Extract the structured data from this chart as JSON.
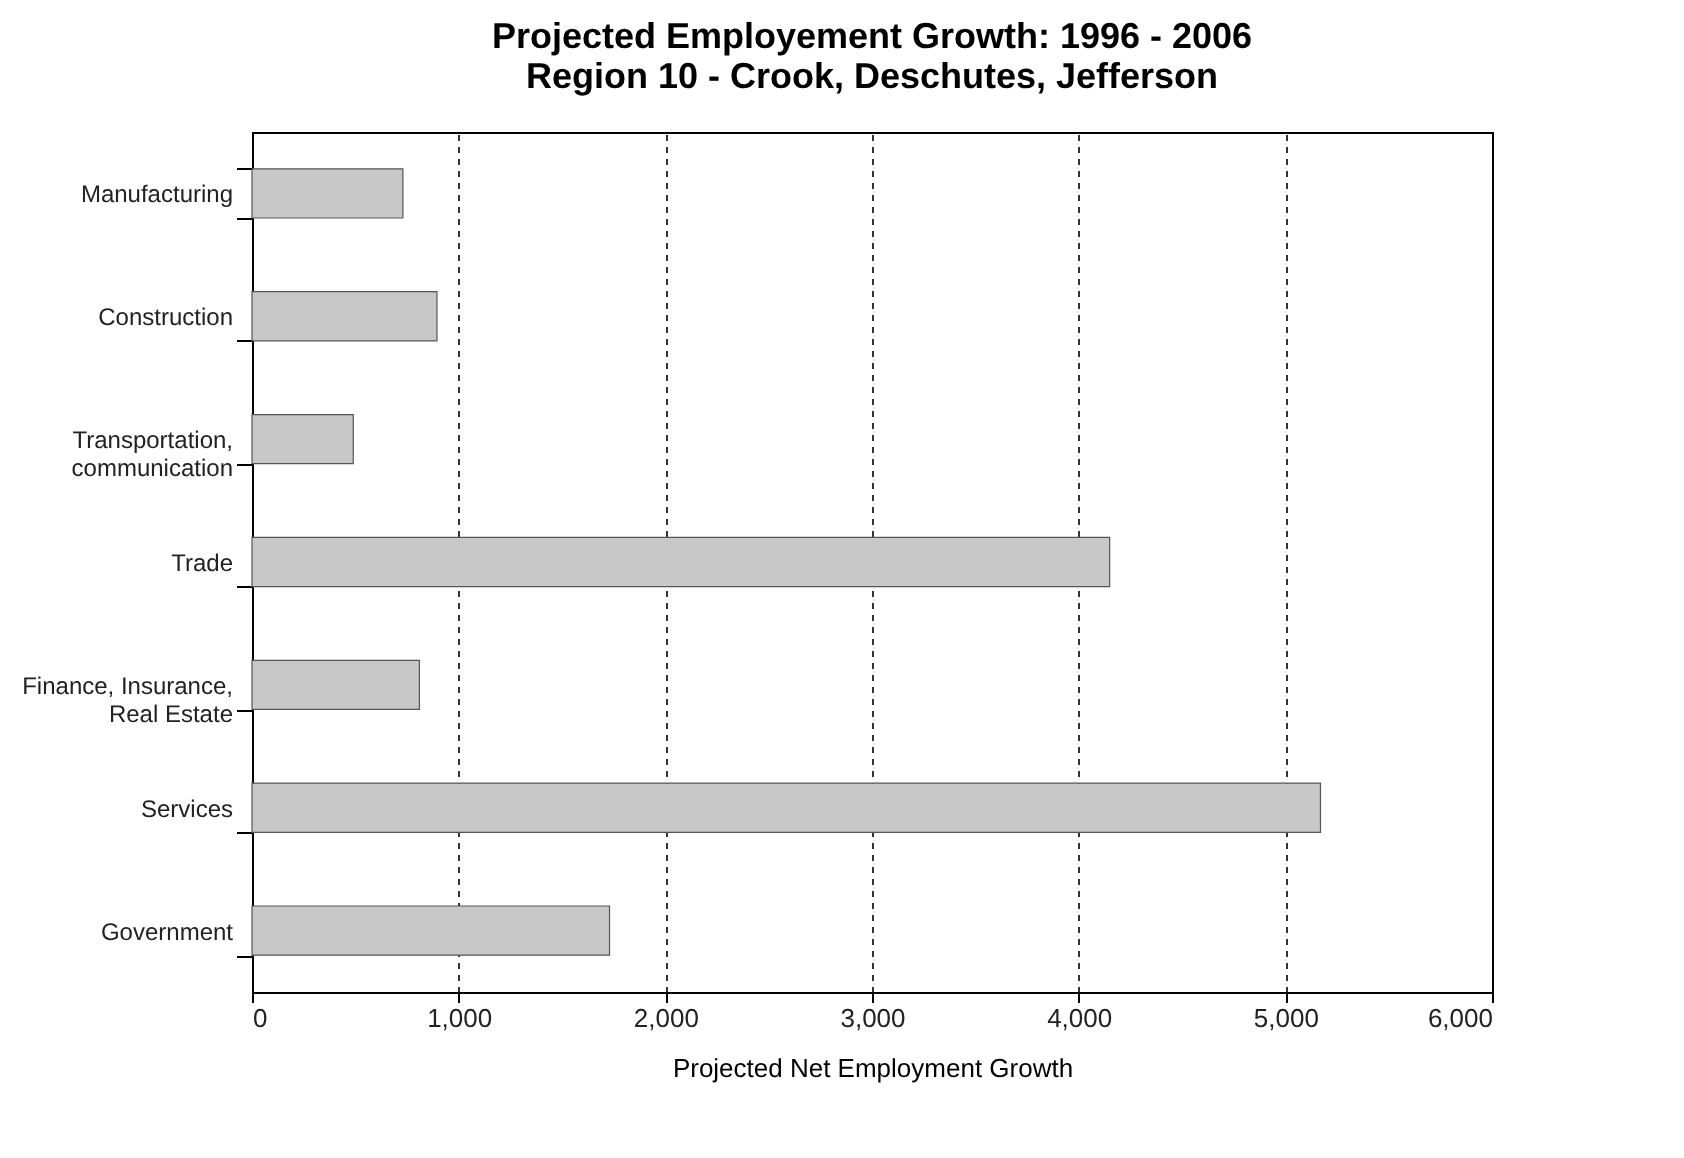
{
  "chart_data": {
    "type": "bar",
    "orientation": "horizontal",
    "title": "Projected Employement Growth:  1996 - 2006",
    "subtitle": "Region 10 - Crook, Deschutes, Jefferson",
    "xlabel": "Projected Net Employment Growth",
    "categories": [
      "Manufacturing",
      "Construction",
      "Transportation, communication",
      "Trade",
      "Finance, Insurance, Real Estate",
      "Services",
      "Government"
    ],
    "values": [
      730,
      895,
      490,
      4150,
      810,
      5170,
      1730
    ],
    "color": "#c8c8c8",
    "xlim": [
      0,
      6000
    ],
    "xticks": [
      0,
      {
        "value": 1000,
        "label": "1,000"
      },
      {
        "value": 2000,
        "label": "2,000"
      },
      {
        "value": 3000,
        "label": "3,000"
      },
      {
        "value": 4000,
        "label": "4,000"
      },
      {
        "value": 5000,
        "label": "5,000"
      },
      {
        "value": 6000,
        "label": "6,000"
      }
    ],
    "grid": "x",
    "line_style": "dashed"
  }
}
